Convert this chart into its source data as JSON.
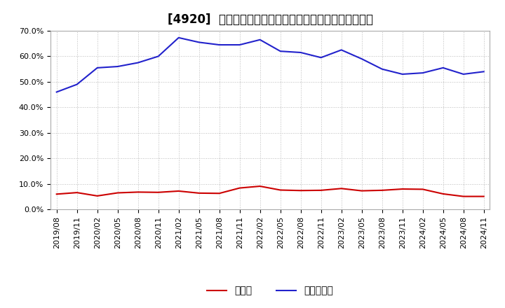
{
  "title": "[4920]  現預金、有利子負債の総資産に対する比率の推移",
  "ylim": [
    0.0,
    0.7
  ],
  "yticks": [
    0.0,
    0.1,
    0.2,
    0.3,
    0.4,
    0.5,
    0.6,
    0.7
  ],
  "ytick_labels": [
    "0.0%",
    "10.0%",
    "20.0%",
    "30.0%",
    "40.0%",
    "50.0%",
    "60.0%",
    "70.0%"
  ],
  "x_labels": [
    "2019/08",
    "2019/11",
    "2020/02",
    "2020/05",
    "2020/08",
    "2020/11",
    "2021/02",
    "2021/05",
    "2021/08",
    "2021/11",
    "2022/02",
    "2022/05",
    "2022/08",
    "2022/11",
    "2023/02",
    "2023/05",
    "2023/08",
    "2023/11",
    "2024/02",
    "2024/05",
    "2024/08",
    "2024/11"
  ],
  "cash": [
    0.06,
    0.066,
    0.053,
    0.065,
    0.068,
    0.067,
    0.072,
    0.064,
    0.063,
    0.084,
    0.091,
    0.076,
    0.074,
    0.075,
    0.082,
    0.073,
    0.075,
    0.08,
    0.079,
    0.061,
    0.051,
    0.051
  ],
  "debt": [
    0.46,
    0.49,
    0.555,
    0.56,
    0.575,
    0.6,
    0.673,
    0.655,
    0.645,
    0.645,
    0.665,
    0.62,
    0.615,
    0.595,
    0.625,
    0.59,
    0.55,
    0.53,
    0.535,
    0.555,
    0.53,
    0.54
  ],
  "cash_color": "#cc0000",
  "debt_color": "#2222cc",
  "background_color": "#ffffff",
  "plot_background": "#ffffff",
  "grid_color": "#bbbbbb",
  "legend_cash": "現預金",
  "legend_debt": "有利子負債",
  "title_fontsize": 12,
  "tick_fontsize": 8,
  "legend_fontsize": 10,
  "line_width": 1.5
}
